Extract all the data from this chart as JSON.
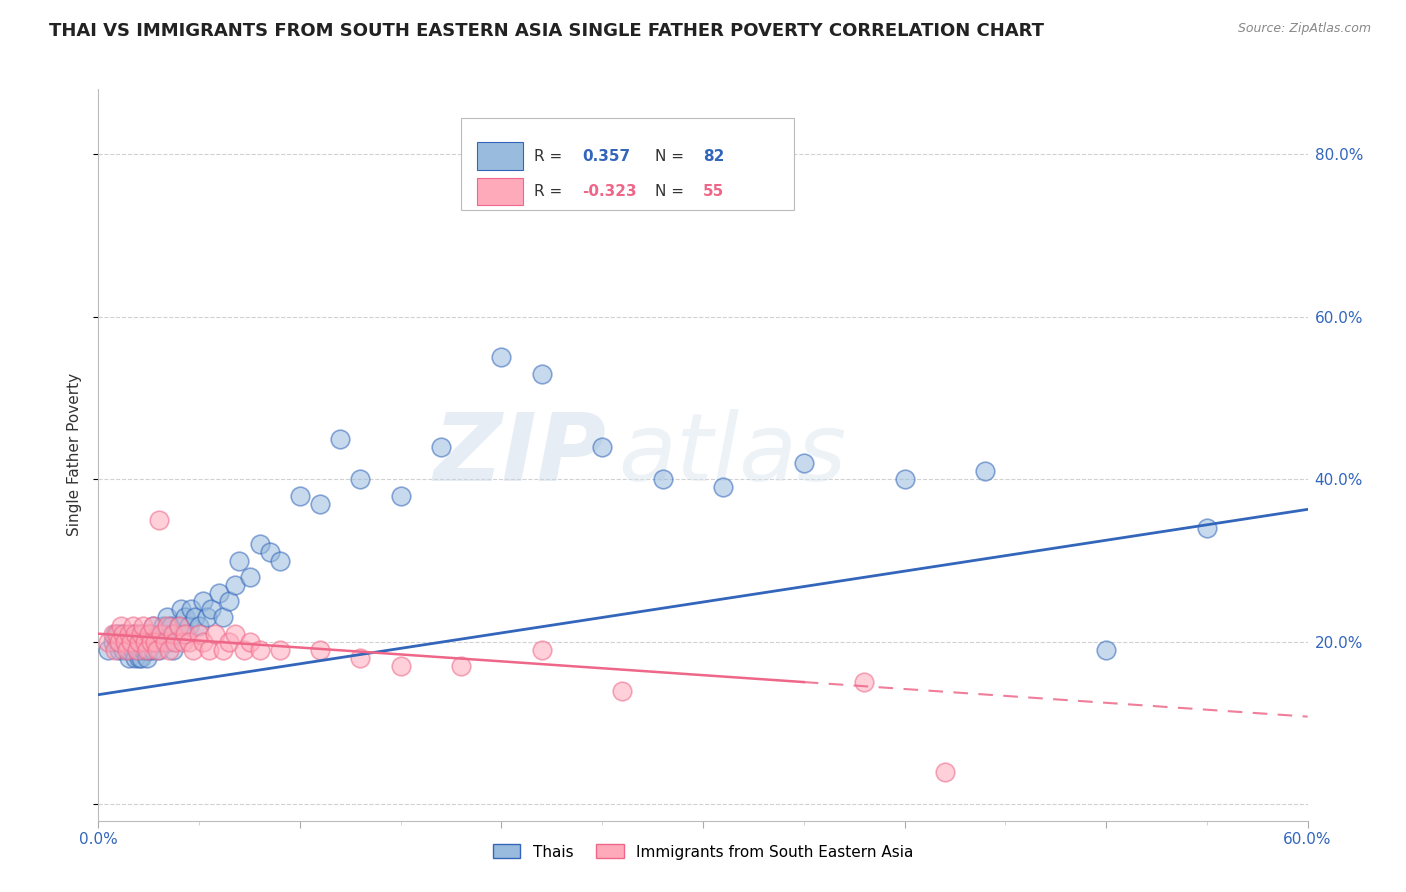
{
  "title": "THAI VS IMMIGRANTS FROM SOUTH EASTERN ASIA SINGLE FATHER POVERTY CORRELATION CHART",
  "source": "Source: ZipAtlas.com",
  "ylabel": "Single Father Poverty",
  "xlim": [
    0.0,
    0.6
  ],
  "ylim": [
    -0.02,
    0.88
  ],
  "blue_color": "#99BBDD",
  "pink_color": "#FFAABB",
  "blue_line_color": "#3366BB",
  "pink_line_color": "#EE6688",
  "legend_R_blue": "0.357",
  "legend_N_blue": "82",
  "legend_R_pink": "-0.323",
  "legend_N_pink": "55",
  "watermark_zip": "ZIP",
  "watermark_atlas": "atlas",
  "thais_x": [
    0.005,
    0.007,
    0.008,
    0.009,
    0.01,
    0.01,
    0.01,
    0.012,
    0.012,
    0.013,
    0.015,
    0.015,
    0.016,
    0.016,
    0.017,
    0.017,
    0.018,
    0.018,
    0.019,
    0.019,
    0.02,
    0.02,
    0.02,
    0.021,
    0.021,
    0.022,
    0.022,
    0.023,
    0.023,
    0.024,
    0.025,
    0.025,
    0.026,
    0.027,
    0.027,
    0.028,
    0.03,
    0.03,
    0.031,
    0.032,
    0.033,
    0.034,
    0.035,
    0.036,
    0.037,
    0.038,
    0.04,
    0.041,
    0.042,
    0.043,
    0.045,
    0.046,
    0.048,
    0.05,
    0.052,
    0.054,
    0.056,
    0.06,
    0.062,
    0.065,
    0.068,
    0.07,
    0.075,
    0.08,
    0.085,
    0.09,
    0.1,
    0.11,
    0.12,
    0.13,
    0.15,
    0.17,
    0.2,
    0.22,
    0.25,
    0.28,
    0.31,
    0.35,
    0.4,
    0.44,
    0.5,
    0.55
  ],
  "thais_y": [
    0.19,
    0.2,
    0.21,
    0.2,
    0.19,
    0.2,
    0.21,
    0.19,
    0.21,
    0.2,
    0.18,
    0.19,
    0.2,
    0.21,
    0.19,
    0.2,
    0.18,
    0.21,
    0.19,
    0.2,
    0.18,
    0.19,
    0.21,
    0.18,
    0.2,
    0.19,
    0.21,
    0.2,
    0.19,
    0.18,
    0.19,
    0.2,
    0.21,
    0.19,
    0.22,
    0.2,
    0.19,
    0.21,
    0.2,
    0.22,
    0.21,
    0.23,
    0.2,
    0.22,
    0.19,
    0.21,
    0.22,
    0.24,
    0.21,
    0.23,
    0.22,
    0.24,
    0.23,
    0.22,
    0.25,
    0.23,
    0.24,
    0.26,
    0.23,
    0.25,
    0.27,
    0.3,
    0.28,
    0.32,
    0.31,
    0.3,
    0.38,
    0.37,
    0.45,
    0.4,
    0.38,
    0.44,
    0.55,
    0.53,
    0.44,
    0.4,
    0.39,
    0.42,
    0.4,
    0.41,
    0.19,
    0.34
  ],
  "imm_x": [
    0.005,
    0.007,
    0.008,
    0.009,
    0.01,
    0.011,
    0.012,
    0.013,
    0.014,
    0.015,
    0.016,
    0.017,
    0.018,
    0.019,
    0.02,
    0.021,
    0.022,
    0.023,
    0.024,
    0.025,
    0.026,
    0.027,
    0.028,
    0.029,
    0.03,
    0.031,
    0.033,
    0.034,
    0.035,
    0.037,
    0.038,
    0.04,
    0.042,
    0.043,
    0.045,
    0.047,
    0.05,
    0.052,
    0.055,
    0.058,
    0.062,
    0.065,
    0.068,
    0.072,
    0.075,
    0.08,
    0.09,
    0.11,
    0.13,
    0.15,
    0.18,
    0.22,
    0.26,
    0.38,
    0.42
  ],
  "imm_y": [
    0.2,
    0.21,
    0.19,
    0.21,
    0.2,
    0.22,
    0.21,
    0.2,
    0.19,
    0.21,
    0.2,
    0.22,
    0.21,
    0.19,
    0.2,
    0.21,
    0.22,
    0.2,
    0.19,
    0.21,
    0.2,
    0.22,
    0.2,
    0.19,
    0.35,
    0.21,
    0.2,
    0.22,
    0.19,
    0.21,
    0.2,
    0.22,
    0.2,
    0.21,
    0.2,
    0.19,
    0.21,
    0.2,
    0.19,
    0.21,
    0.19,
    0.2,
    0.21,
    0.19,
    0.2,
    0.19,
    0.19,
    0.19,
    0.18,
    0.17,
    0.17,
    0.19,
    0.14,
    0.15,
    0.04
  ]
}
